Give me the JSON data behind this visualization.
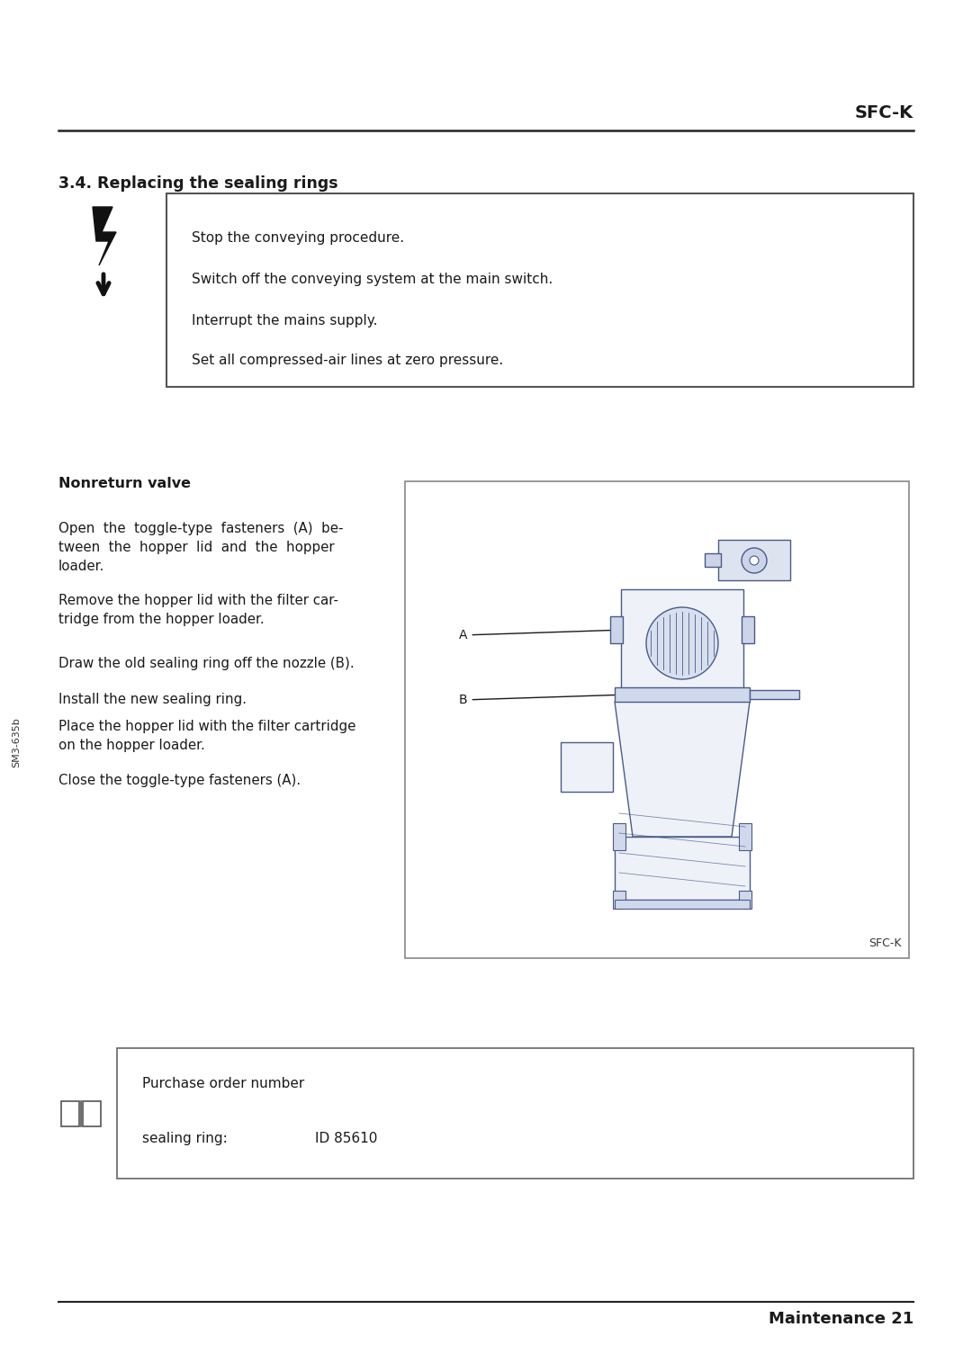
{
  "page_width": 10.8,
  "page_height": 15.25,
  "bg_color": "#ffffff",
  "text_color": "#1a1a1a",
  "header_text": "SFC-K",
  "section_title": "3.4. Replacing the sealing rings",
  "warning_lines": [
    "Stop the conveying procedure.",
    "Switch off the conveying system at the main switch.",
    "Interrupt the mains supply.",
    "Set all compressed-air lines at zero pressure."
  ],
  "nonreturn_title": "Nonreturn valve",
  "body_paragraphs": [
    "Open  the  toggle-type  fasteners  (A)  be-\ntween  the  hopper  lid  and  the  hopper\nloader.",
    "Remove the hopper lid with the filter car-\ntridge from the hopper loader.",
    "Draw the old sealing ring off the nozzle (B).",
    "Install the new sealing ring.",
    "Place the hopper lid with the filter cartridge\non the hopper loader.",
    "Close the toggle-type fasteners (A)."
  ],
  "diagram_caption": "SFC-K",
  "purchase_line1": "Purchase order number",
  "purchase_label": "sealing ring:",
  "purchase_value": "ID 85610",
  "footer_text": "Maintenance 21",
  "side_label": "SM3-635b"
}
